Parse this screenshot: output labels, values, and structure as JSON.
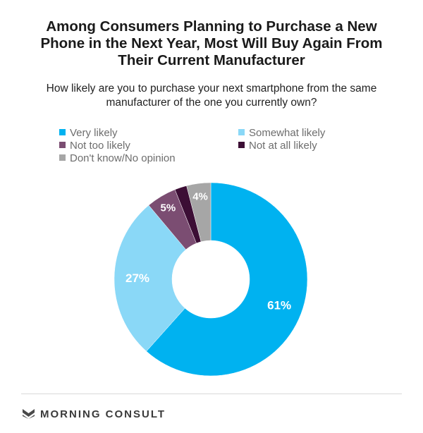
{
  "title_lines": [
    "Among Consumers Planning to Purchase a New",
    "Phone in the Next Year, Most Will Buy Again From",
    "Their Current Manufacturer"
  ],
  "subtitle_lines": [
    "How likely are you to purchase your next smartphone from the same",
    "manufacturer of the one you currently own?"
  ],
  "chart_data": {
    "type": "pie",
    "donut": true,
    "categories": [
      "Very likely",
      "Somewhat likely",
      "Not too likely",
      "Not at all likely",
      "Don't know/No opinion"
    ],
    "values": [
      61,
      27,
      5,
      2,
      4
    ],
    "value_labels": [
      "61%",
      "27%",
      "5%",
      "",
      "4%"
    ],
    "colors": [
      "#00b2f0",
      "#8ad8f7",
      "#7b4d72",
      "#3c0e35",
      "#a6a6a6"
    ],
    "label_colors": [
      "#ffffff",
      "#ffffff",
      "#ffffff",
      "#ffffff",
      "#ffffff"
    ],
    "legend_position": "top"
  },
  "legend": [
    {
      "label": "Very likely",
      "color": "#00b2f0"
    },
    {
      "label": "Somewhat likely",
      "color": "#8ad8f7"
    },
    {
      "label": "Not too likely",
      "color": "#7b4d72"
    },
    {
      "label": "Not at all likely",
      "color": "#3c0e35"
    },
    {
      "label": "Don't know/No opinion",
      "color": "#a6a6a6"
    }
  ],
  "footer": {
    "logo_icon": "morning-consult-logo-icon",
    "brand": "MORNING CONSULT"
  }
}
